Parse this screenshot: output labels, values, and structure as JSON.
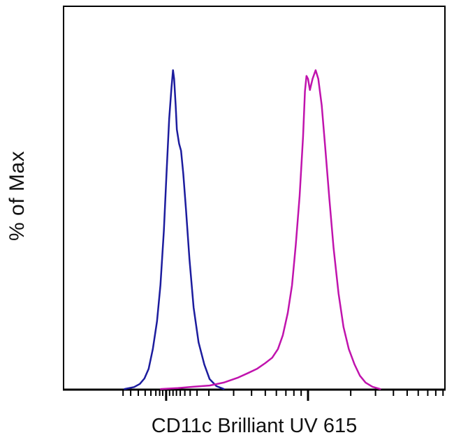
{
  "figure": {
    "kind": "flow-cytometry-histogram-overlay",
    "background_color": "#ffffff",
    "border_color": "#000000"
  },
  "chart_data": {
    "type": "line",
    "title": "",
    "xlabel": "CD11c Brilliant UV 615",
    "ylabel": "% of Max",
    "x_scale": "log-biexponential (tick marks shown, no numeric tick labels visible)",
    "y_scale": "linear (no tick marks or labels visible)",
    "ylim": [
      0,
      120
    ],
    "legend": "none visible",
    "grid": false,
    "series": [
      {
        "name": "blue-curve",
        "description": "left histogram peak, single sharp peak with small right shoulder",
        "color": "#1c1c9e",
        "stroke_width": 2.5,
        "points_format": "[x_fraction_of_axis_0to1, y_percent_of_max_0to100]",
        "points": [
          [
            0.16,
            0.2
          ],
          [
            0.185,
            0.8
          ],
          [
            0.2,
            1.8
          ],
          [
            0.212,
            3.5
          ],
          [
            0.223,
            6.5
          ],
          [
            0.234,
            12.7
          ],
          [
            0.245,
            21.4
          ],
          [
            0.254,
            32.7
          ],
          [
            0.263,
            49.7
          ],
          [
            0.27,
            67.6
          ],
          [
            0.277,
            84.7
          ],
          [
            0.283,
            94.5
          ],
          [
            0.287,
            100.0
          ],
          [
            0.29,
            97.3
          ],
          [
            0.294,
            89.0
          ],
          [
            0.297,
            81.4
          ],
          [
            0.303,
            77.0
          ],
          [
            0.308,
            74.8
          ],
          [
            0.314,
            67.6
          ],
          [
            0.321,
            56.3
          ],
          [
            0.33,
            41.0
          ],
          [
            0.341,
            25.7
          ],
          [
            0.354,
            14.8
          ],
          [
            0.369,
            7.9
          ],
          [
            0.383,
            3.3
          ],
          [
            0.401,
            1.1
          ],
          [
            0.42,
            0.2
          ]
        ]
      },
      {
        "name": "magenta-curve",
        "description": "right histogram peak, tall double-topped peak with long low left shoulder",
        "color": "#c013ad",
        "stroke_width": 2.5,
        "points_format": "[x_fraction_of_axis_0to1, y_percent_of_max_0to100]",
        "points": [
          [
            0.255,
            0.2
          ],
          [
            0.3,
            0.5
          ],
          [
            0.34,
            0.9
          ],
          [
            0.383,
            1.3
          ],
          [
            0.42,
            2.2
          ],
          [
            0.456,
            3.7
          ],
          [
            0.484,
            5.2
          ],
          [
            0.507,
            6.5
          ],
          [
            0.529,
            8.3
          ],
          [
            0.547,
            10.0
          ],
          [
            0.562,
            12.7
          ],
          [
            0.575,
            17.0
          ],
          [
            0.588,
            24.0
          ],
          [
            0.599,
            32.7
          ],
          [
            0.609,
            45.4
          ],
          [
            0.619,
            60.7
          ],
          [
            0.628,
            79.2
          ],
          [
            0.633,
            93.4
          ],
          [
            0.637,
            98.2
          ],
          [
            0.641,
            97.3
          ],
          [
            0.646,
            93.8
          ],
          [
            0.653,
            97.3
          ],
          [
            0.661,
            100.0
          ],
          [
            0.668,
            97.3
          ],
          [
            0.677,
            89.0
          ],
          [
            0.686,
            75.9
          ],
          [
            0.697,
            59.6
          ],
          [
            0.708,
            44.3
          ],
          [
            0.721,
            30.1
          ],
          [
            0.734,
            19.6
          ],
          [
            0.748,
            12.7
          ],
          [
            0.763,
            7.9
          ],
          [
            0.777,
            4.4
          ],
          [
            0.792,
            2.2
          ],
          [
            0.81,
            0.9
          ],
          [
            0.83,
            0.2
          ]
        ]
      }
    ],
    "x_axis_ticks": {
      "major_fractions": [
        0.269,
        0.641
      ],
      "minor_fractions": [
        0.156,
        0.176,
        0.196,
        0.214,
        0.229,
        0.242,
        0.252,
        0.26,
        0.278,
        0.287,
        0.296,
        0.306,
        0.318,
        0.332,
        0.35,
        0.381,
        0.446,
        0.493,
        0.529,
        0.558,
        0.583,
        0.604,
        0.623,
        0.753,
        0.818,
        0.865,
        0.901,
        0.93,
        0.955,
        0.976,
        0.995
      ]
    }
  }
}
